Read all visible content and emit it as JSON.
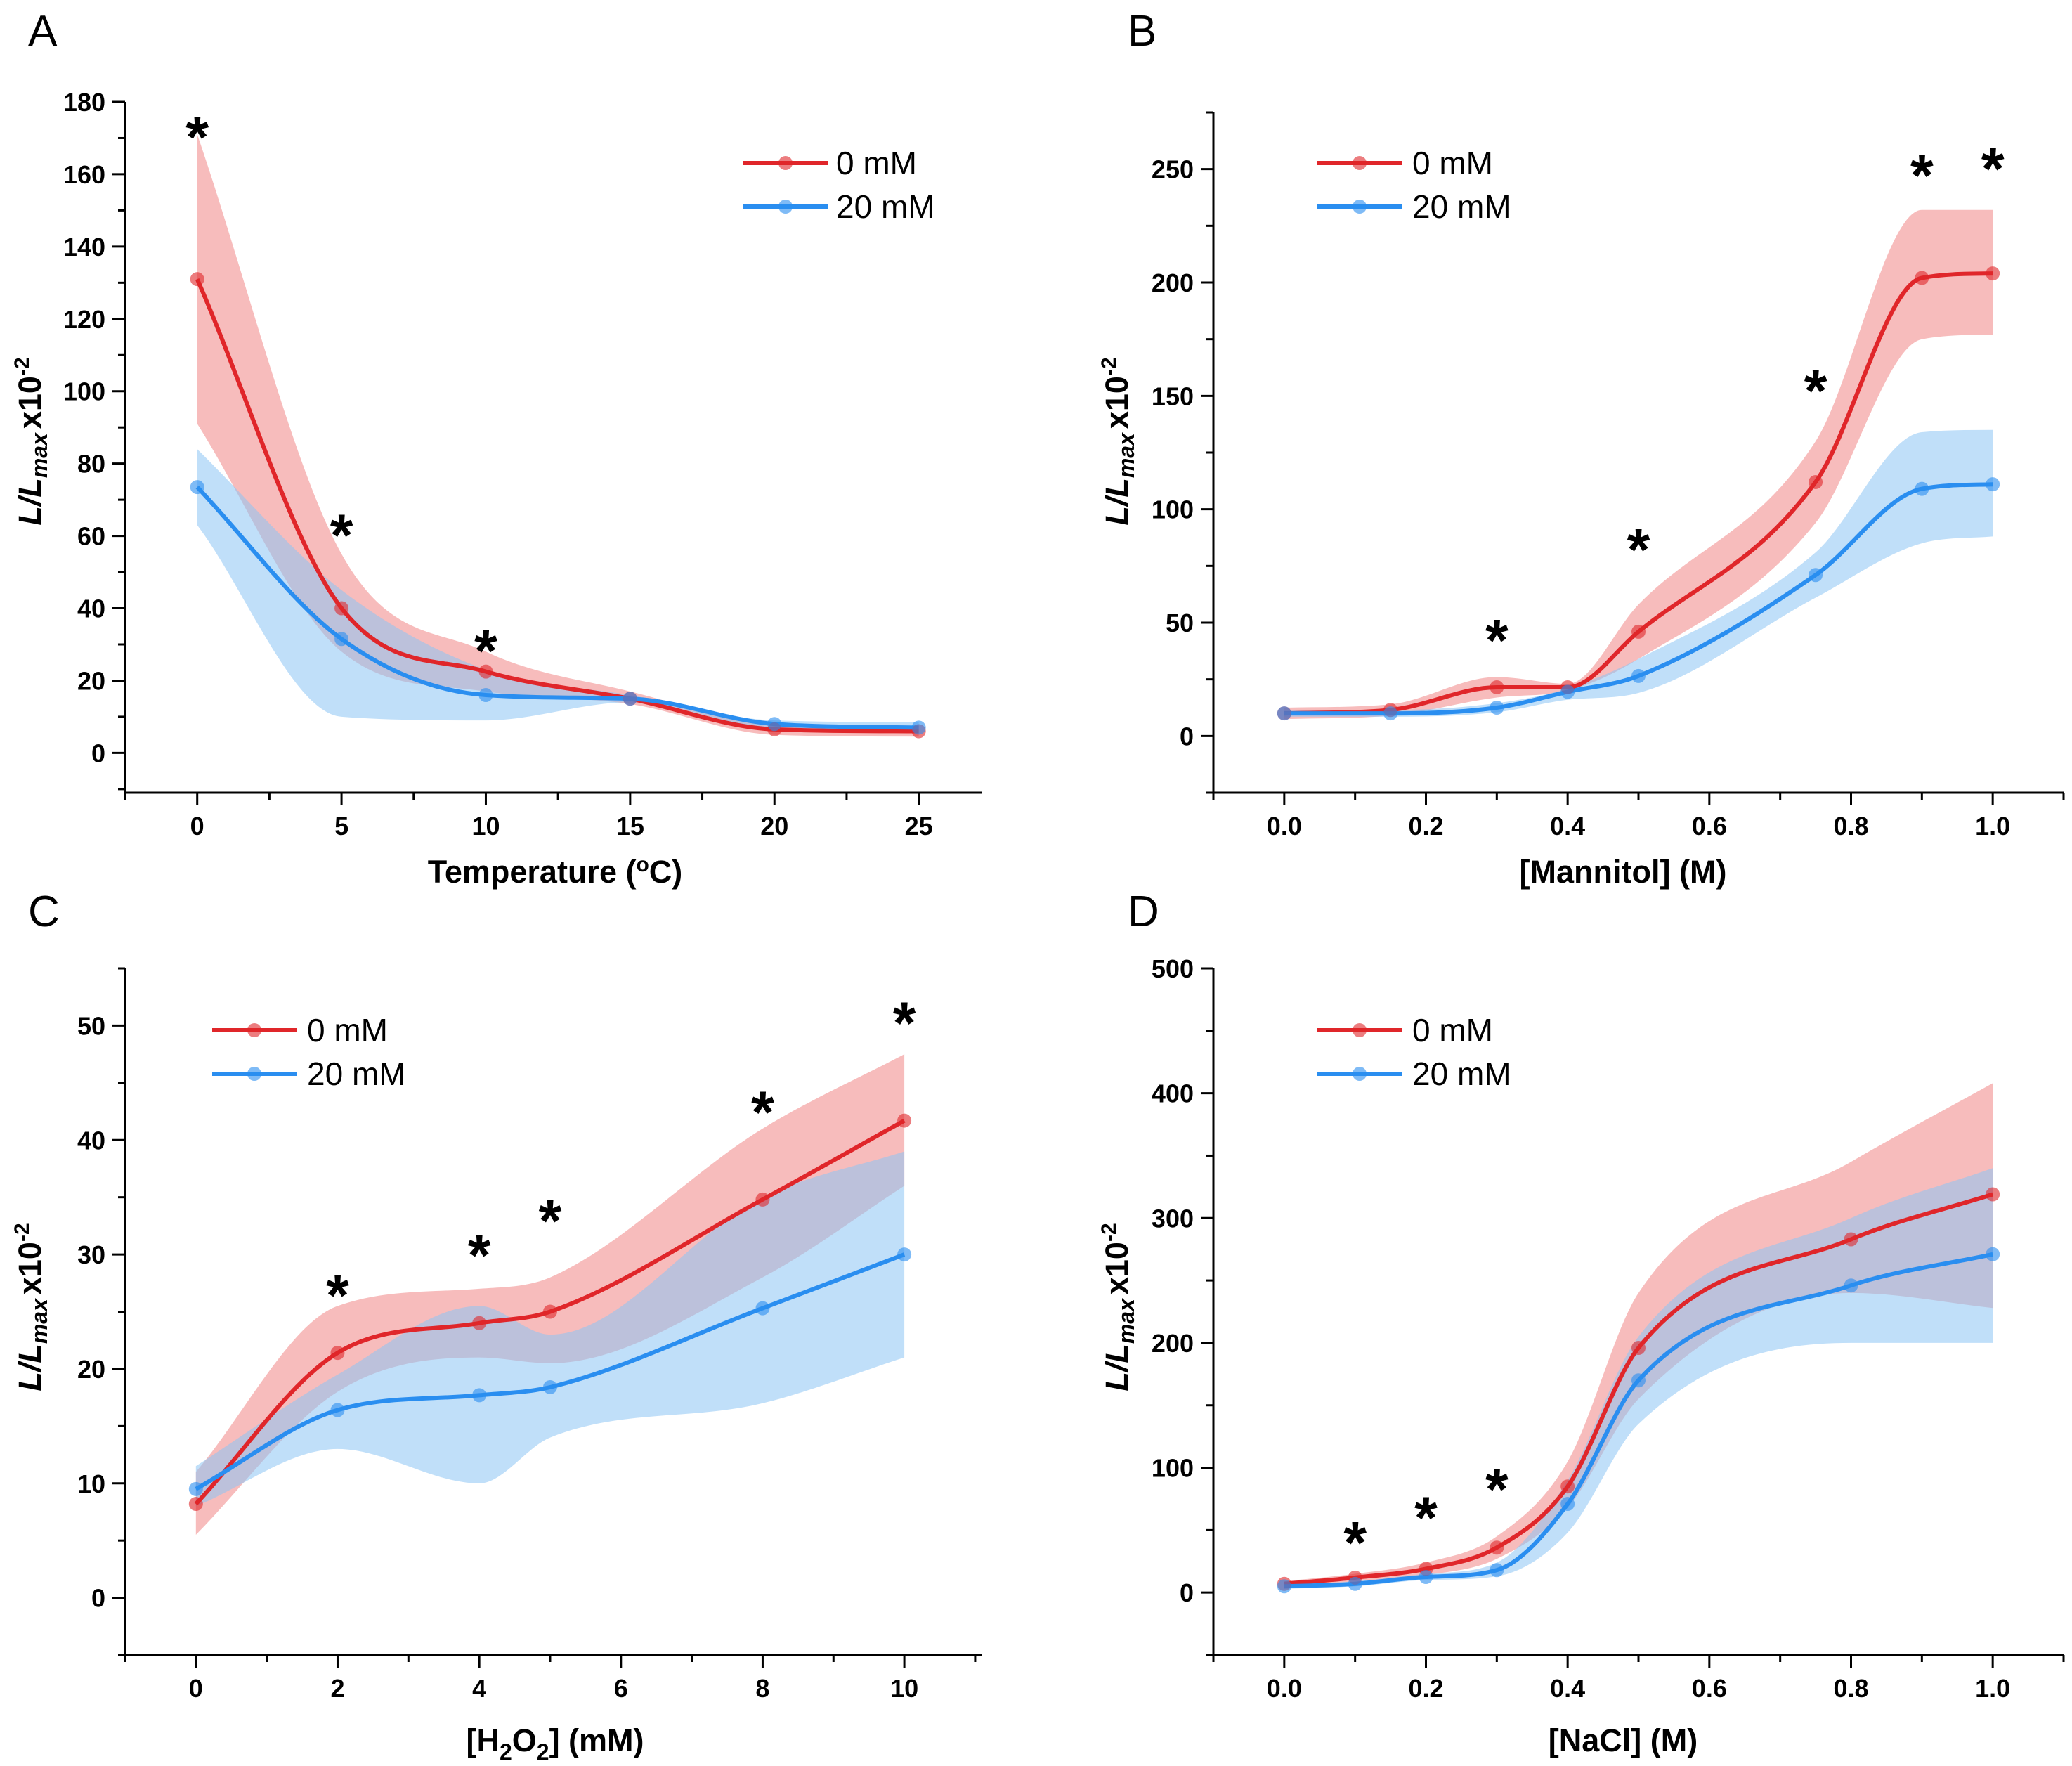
{
  "colors": {
    "red": "#e0262a",
    "blue": "#2a8ef0",
    "red_band": "#f08585",
    "blue_band": "#8cc4f4",
    "axis": "#000000"
  },
  "y_title_parts": {
    "l": "L/L",
    "sub": "max",
    "x10": "x10",
    "exp": "-2"
  },
  "chart_data": [
    {
      "type": "line",
      "panel_label": "A",
      "xlabel": "Temperature (oC)",
      "xlabel_parts": {
        "a": "Temperature (",
        "sup": "o",
        "b": "C)"
      },
      "ylabel": "L/Lmax x10-2",
      "xlim": [
        -2.5,
        27.2
      ],
      "ylim": [
        -11,
        180
      ],
      "x_ticks": [
        0,
        5,
        10,
        15,
        20,
        25
      ],
      "x_minor_step": 2.5,
      "x_tick_labels": [
        "0",
        "5",
        "10",
        "15",
        "20",
        "25"
      ],
      "y_ticks": [
        0,
        20,
        40,
        60,
        80,
        100,
        120,
        140,
        160,
        180
      ],
      "y_minor_step": 10,
      "y_tick_labels": [
        "0",
        "20",
        "40",
        "60",
        "80",
        "100",
        "120",
        "140",
        "160",
        "180"
      ],
      "legend_position": "top-right",
      "legend_entries": [
        "0 mM",
        "20 mM"
      ],
      "series": [
        {
          "name": "0 mM",
          "color": "red",
          "x": [
            0,
            5,
            10,
            15,
            20,
            25
          ],
          "y": [
            131,
            40,
            22.5,
            15,
            6.5,
            6
          ],
          "upper": [
            171,
            55,
            28,
            17,
            8,
            7
          ],
          "lower": [
            91,
            28,
            17,
            13.5,
            5,
            4.5
          ]
        },
        {
          "name": "20 mM",
          "color": "blue",
          "x": [
            0,
            5,
            10,
            15,
            20,
            25
          ],
          "y": [
            73.5,
            31.5,
            16,
            15,
            8,
            7
          ],
          "upper": [
            84,
            45,
            23,
            16,
            9,
            8.5
          ],
          "lower": [
            63,
            10,
            9,
            14,
            6.5,
            5.5
          ]
        }
      ],
      "annotations": [
        {
          "text": "*",
          "x": 0,
          "y": 172
        },
        {
          "text": "*",
          "x": 5,
          "y": 62
        },
        {
          "text": "*",
          "x": 10,
          "y": 30
        }
      ]
    },
    {
      "type": "line",
      "panel_label": "B",
      "xlabel": "[Mannitol] (M)",
      "xlabel_parts": {
        "a": "[Mannitol] (M)"
      },
      "ylabel": "L/Lmax x10-2",
      "xlim": [
        -0.1,
        1.1
      ],
      "ylim": [
        -25,
        275
      ],
      "x_ticks": [
        0.0,
        0.2,
        0.4,
        0.6,
        0.8,
        1.0
      ],
      "x_minor_step": 0.1,
      "x_tick_labels": [
        "0.0",
        "0.2",
        "0.4",
        "0.6",
        "0.8",
        "1.0"
      ],
      "y_ticks": [
        0,
        50,
        100,
        150,
        200,
        250
      ],
      "y_minor_step": 25,
      "y_tick_labels": [
        "0",
        "50",
        "100",
        "150",
        "200",
        "250"
      ],
      "legend_position": "top-left",
      "legend_entries": [
        "0 mM",
        "20 mM"
      ],
      "series": [
        {
          "name": "0 mM",
          "color": "red",
          "x": [
            0,
            0.15,
            0.3,
            0.4,
            0.5,
            0.75,
            0.9,
            1.0
          ],
          "y": [
            10,
            11.5,
            21.5,
            21.5,
            46,
            112,
            202,
            204
          ],
          "upper": [
            12.5,
            14,
            26,
            23,
            58,
            130,
            232,
            232
          ],
          "lower": [
            7.5,
            9,
            17,
            20,
            34,
            94,
            175,
            177
          ]
        },
        {
          "name": "20 mM",
          "color": "blue",
          "x": [
            0,
            0.15,
            0.3,
            0.4,
            0.5,
            0.75,
            0.9,
            1.0
          ],
          "y": [
            10,
            10,
            12.5,
            19.5,
            26.5,
            71,
            109,
            111
          ],
          "upper": [
            11.5,
            11.5,
            14.5,
            21,
            34,
            81,
            134,
            135
          ],
          "lower": [
            8.5,
            8.5,
            10.5,
            16,
            19,
            61,
            85,
            88
          ]
        }
      ],
      "annotations": [
        {
          "text": "*",
          "x": 0.3,
          "y": 45
        },
        {
          "text": "*",
          "x": 0.5,
          "y": 85
        },
        {
          "text": "*",
          "x": 0.75,
          "y": 155
        },
        {
          "text": "*",
          "x": 0.9,
          "y": 250
        },
        {
          "text": "*",
          "x": 1.0,
          "y": 253
        }
      ]
    },
    {
      "type": "line",
      "panel_label": "C",
      "xlabel": "[H2O2] (mM)",
      "xlabel_parts": {
        "a": "[H",
        "sub1": "2",
        "b": "O",
        "sub2": "2",
        "c": "] (mM)"
      },
      "ylabel": "L/Lmax x10-2",
      "xlim": [
        -1,
        11.1
      ],
      "ylim": [
        -5,
        55
      ],
      "x_ticks": [
        0,
        2,
        4,
        6,
        8,
        10
      ],
      "x_minor_step": 1,
      "x_tick_labels": [
        "0",
        "2",
        "4",
        "6",
        "8",
        "10"
      ],
      "y_ticks": [
        0,
        10,
        20,
        30,
        40,
        50
      ],
      "y_minor_step": 5,
      "y_tick_labels": [
        "0",
        "10",
        "20",
        "30",
        "40",
        "50"
      ],
      "legend_position": "top-left",
      "legend_entries": [
        "0 mM",
        "20 mM"
      ],
      "series": [
        {
          "name": "0 mM",
          "color": "red",
          "x": [
            0,
            2,
            4,
            5,
            8,
            10
          ],
          "y": [
            8.2,
            21.4,
            24,
            25,
            34.8,
            41.7
          ],
          "upper": [
            11,
            25.5,
            27,
            28,
            41,
            47.5
          ],
          "lower": [
            5.5,
            18,
            21,
            20.5,
            28,
            36
          ]
        },
        {
          "name": "20 mM",
          "color": "blue",
          "x": [
            0,
            2,
            4,
            5,
            8,
            10
          ],
          "y": [
            9.5,
            16.4,
            17.7,
            18.4,
            25.3,
            30
          ],
          "upper": [
            11.5,
            19.5,
            25.5,
            23,
            35,
            39
          ],
          "lower": [
            8,
            13,
            10,
            14,
            17,
            21
          ]
        }
      ],
      "annotations": [
        {
          "text": "*",
          "x": 2,
          "y": 27
        },
        {
          "text": "*",
          "x": 4,
          "y": 30.5
        },
        {
          "text": "*",
          "x": 5,
          "y": 33.5
        },
        {
          "text": "*",
          "x": 8,
          "y": 43
        },
        {
          "text": "*",
          "x": 10,
          "y": 50.8
        }
      ]
    },
    {
      "type": "line",
      "panel_label": "D",
      "xlabel": "[NaCl] (M)",
      "xlabel_parts": {
        "a": "[NaCl] (M)"
      },
      "ylabel": "L/Lmax x10-2",
      "xlim": [
        -0.1,
        1.1
      ],
      "ylim": [
        -50,
        500
      ],
      "x_ticks": [
        0.0,
        0.2,
        0.4,
        0.6,
        0.8,
        1.0
      ],
      "x_minor_step": 0.1,
      "x_tick_labels": [
        "0.0",
        "0.2",
        "0.4",
        "0.6",
        "0.8",
        "1.0"
      ],
      "y_ticks": [
        0,
        100,
        200,
        300,
        400,
        500
      ],
      "y_minor_step": 50,
      "y_tick_labels": [
        "0",
        "100",
        "200",
        "300",
        "400",
        "500"
      ],
      "legend_position": "top-left",
      "legend_entries": [
        "0 mM",
        "20 mM"
      ],
      "series": [
        {
          "name": "0 mM",
          "color": "red",
          "x": [
            0,
            0.1,
            0.2,
            0.3,
            0.4,
            0.5,
            0.8,
            1.0
          ],
          "y": [
            7,
            12,
            19,
            36,
            85,
            196,
            283,
            319
          ],
          "upper": [
            9,
            15,
            24,
            45,
            105,
            240,
            345,
            408
          ],
          "lower": [
            5,
            9,
            14,
            27,
            68,
            155,
            240,
            228
          ]
        },
        {
          "name": "20 mM",
          "color": "blue",
          "x": [
            0,
            0.1,
            0.2,
            0.3,
            0.4,
            0.5,
            0.8,
            1.0
          ],
          "y": [
            5,
            7,
            12.5,
            18,
            71,
            170,
            246,
            271
          ],
          "upper": [
            7,
            9,
            15,
            24,
            90,
            205,
            300,
            340
          ],
          "lower": [
            3,
            5,
            10,
            13,
            48,
            135,
            200,
            200
          ]
        }
      ],
      "annotations": [
        {
          "text": "*",
          "x": 0.1,
          "y": 45
        },
        {
          "text": "*",
          "x": 0.2,
          "y": 65
        },
        {
          "text": "*",
          "x": 0.3,
          "y": 88
        }
      ]
    }
  ]
}
